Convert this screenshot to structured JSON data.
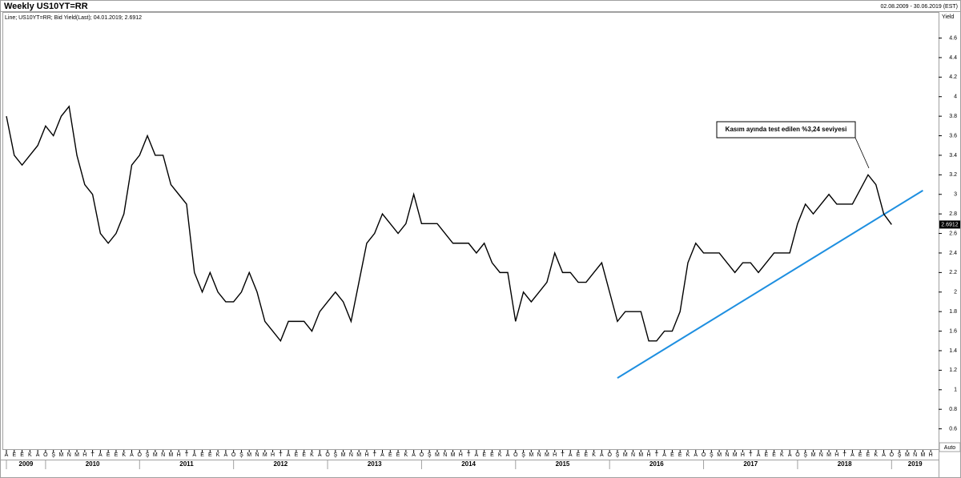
{
  "chart_data": {
    "type": "line",
    "title": "Weekly US10YT=RR",
    "date_range": "02.08.2009 - 30.06.2019 (EST)",
    "legend_text": "Line; US10YT=RR; Bid Yield(Last); 04.01.2019; 2.6912",
    "y_label": "Yield",
    "scale_mode": "Auto",
    "annotation": "Kasım ayında test edilen %3,24 seviyesi",
    "grid": false,
    "x": [
      "2009-08",
      "2009-09",
      "2009-10",
      "2009-11",
      "2009-12",
      "2010-01",
      "2010-02",
      "2010-03",
      "2010-04",
      "2010-05",
      "2010-06",
      "2010-07",
      "2010-08",
      "2010-09",
      "2010-10",
      "2010-11",
      "2010-12",
      "2011-01",
      "2011-02",
      "2011-03",
      "2011-04",
      "2011-05",
      "2011-06",
      "2011-07",
      "2011-08",
      "2011-09",
      "2011-10",
      "2011-11",
      "2011-12",
      "2012-01",
      "2012-02",
      "2012-03",
      "2012-04",
      "2012-05",
      "2012-06",
      "2012-07",
      "2012-08",
      "2012-09",
      "2012-10",
      "2012-11",
      "2012-12",
      "2013-01",
      "2013-02",
      "2013-03",
      "2013-04",
      "2013-05",
      "2013-06",
      "2013-07",
      "2013-08",
      "2013-09",
      "2013-10",
      "2013-11",
      "2013-12",
      "2014-01",
      "2014-02",
      "2014-03",
      "2014-04",
      "2014-05",
      "2014-06",
      "2014-07",
      "2014-08",
      "2014-09",
      "2014-10",
      "2014-11",
      "2014-12",
      "2015-01",
      "2015-02",
      "2015-03",
      "2015-04",
      "2015-05",
      "2015-06",
      "2015-07",
      "2015-08",
      "2015-09",
      "2015-10",
      "2015-11",
      "2015-12",
      "2016-01",
      "2016-02",
      "2016-03",
      "2016-04",
      "2016-05",
      "2016-06",
      "2016-07",
      "2016-08",
      "2016-09",
      "2016-10",
      "2016-11",
      "2016-12",
      "2017-01",
      "2017-02",
      "2017-03",
      "2017-04",
      "2017-05",
      "2017-06",
      "2017-07",
      "2017-08",
      "2017-09",
      "2017-10",
      "2017-11",
      "2017-12",
      "2018-01",
      "2018-02",
      "2018-03",
      "2018-04",
      "2018-05",
      "2018-06",
      "2018-07",
      "2018-08",
      "2018-09",
      "2018-10",
      "2018-11",
      "2018-12",
      "2019-01"
    ],
    "series": [
      {
        "name": "US10YT=RR",
        "color": "#000000",
        "values": [
          3.8,
          3.4,
          3.3,
          3.4,
          3.5,
          3.7,
          3.6,
          3.8,
          3.9,
          3.4,
          3.1,
          3.0,
          2.6,
          2.5,
          2.6,
          2.8,
          3.3,
          3.4,
          3.6,
          3.4,
          3.4,
          3.1,
          3.0,
          2.9,
          2.2,
          2.0,
          2.2,
          2.0,
          1.9,
          1.9,
          2.0,
          2.2,
          2.0,
          1.7,
          1.6,
          1.5,
          1.7,
          1.7,
          1.7,
          1.6,
          1.8,
          1.9,
          2.0,
          1.9,
          1.7,
          2.1,
          2.5,
          2.6,
          2.8,
          2.7,
          2.6,
          2.7,
          3.0,
          2.7,
          2.7,
          2.7,
          2.6,
          2.5,
          2.5,
          2.5,
          2.4,
          2.5,
          2.3,
          2.2,
          2.2,
          1.7,
          2.0,
          1.9,
          2.0,
          2.1,
          2.4,
          2.2,
          2.2,
          2.1,
          2.1,
          2.2,
          2.3,
          2.0,
          1.7,
          1.8,
          1.8,
          1.8,
          1.5,
          1.5,
          1.6,
          1.6,
          1.8,
          2.3,
          2.5,
          2.4,
          2.4,
          2.4,
          2.3,
          2.2,
          2.3,
          2.3,
          2.2,
          2.3,
          2.4,
          2.4,
          2.4,
          2.7,
          2.9,
          2.8,
          2.9,
          3.0,
          2.9,
          2.9,
          2.9,
          3.05,
          3.2,
          3.1,
          2.8,
          2.6912
        ]
      }
    ],
    "trendline": {
      "x": [
        "2016-02",
        "2019-05"
      ],
      "values": [
        1.12,
        3.04
      ],
      "color": "#1e8fe0"
    },
    "ylim": [
      0.4,
      4.76
    ],
    "yticks": [
      0.6,
      0.8,
      1,
      1.2,
      1.4,
      1.6,
      1.8,
      2,
      2.2,
      2.4,
      2.6,
      2.8,
      3,
      3.2,
      3.4,
      3.6,
      3.8,
      4,
      4.2,
      4.4,
      4.6
    ],
    "xlim": [
      "2009-08",
      "2019-07"
    ],
    "xticks": [
      {
        "value": "2009-08",
        "label": "A"
      },
      {
        "value": "2009-09",
        "label": "E"
      },
      {
        "value": "2009-10",
        "label": "E"
      },
      {
        "value": "2009-11",
        "label": "K"
      },
      {
        "value": "2009-12",
        "label": "A"
      },
      {
        "value": "2010-01",
        "label": "O"
      },
      {
        "value": "2010-02",
        "label": "Ş"
      },
      {
        "value": "2010-03",
        "label": "M"
      },
      {
        "value": "2010-04",
        "label": "N"
      },
      {
        "value": "2010-05",
        "label": "M"
      },
      {
        "value": "2010-06",
        "label": "H"
      },
      {
        "value": "2010-07",
        "label": "T"
      },
      {
        "value": "2010-08",
        "label": "A"
      },
      {
        "value": "2010-09",
        "label": "E"
      },
      {
        "value": "2010-10",
        "label": "E"
      },
      {
        "value": "2010-11",
        "label": "K"
      },
      {
        "value": "2010-12",
        "label": "A"
      },
      {
        "value": "2011-01",
        "label": "O"
      },
      {
        "value": "2011-02",
        "label": "Ş"
      },
      {
        "value": "2011-03",
        "label": "M"
      },
      {
        "value": "2011-04",
        "label": "N"
      },
      {
        "value": "2011-05",
        "label": "M"
      },
      {
        "value": "2011-06",
        "label": "H"
      },
      {
        "value": "2011-07",
        "label": "T"
      },
      {
        "value": "2011-08",
        "label": "A"
      },
      {
        "value": "2011-09",
        "label": "E"
      },
      {
        "value": "2011-10",
        "label": "E"
      },
      {
        "value": "2011-11",
        "label": "K"
      },
      {
        "value": "2011-12",
        "label": "A"
      },
      {
        "value": "2012-01",
        "label": "O"
      },
      {
        "value": "2012-02",
        "label": "Ş"
      },
      {
        "value": "2012-03",
        "label": "M"
      },
      {
        "value": "2012-04",
        "label": "N"
      },
      {
        "value": "2012-05",
        "label": "M"
      },
      {
        "value": "2012-06",
        "label": "H"
      },
      {
        "value": "2012-07",
        "label": "T"
      },
      {
        "value": "2012-08",
        "label": "A"
      },
      {
        "value": "2012-09",
        "label": "E"
      },
      {
        "value": "2012-10",
        "label": "E"
      },
      {
        "value": "2012-11",
        "label": "K"
      },
      {
        "value": "2012-12",
        "label": "A"
      },
      {
        "value": "2013-01",
        "label": "O"
      },
      {
        "value": "2013-02",
        "label": "Ş"
      },
      {
        "value": "2013-03",
        "label": "M"
      },
      {
        "value": "2013-04",
        "label": "N"
      },
      {
        "value": "2013-05",
        "label": "M"
      },
      {
        "value": "2013-06",
        "label": "H"
      },
      {
        "value": "2013-07",
        "label": "T"
      },
      {
        "value": "2013-08",
        "label": "A"
      },
      {
        "value": "2013-09",
        "label": "E"
      },
      {
        "value": "2013-10",
        "label": "E"
      },
      {
        "value": "2013-11",
        "label": "K"
      },
      {
        "value": "2013-12",
        "label": "A"
      },
      {
        "value": "2014-01",
        "label": "O"
      },
      {
        "value": "2014-02",
        "label": "Ş"
      },
      {
        "value": "2014-03",
        "label": "M"
      },
      {
        "value": "2014-04",
        "label": "N"
      },
      {
        "value": "2014-05",
        "label": "M"
      },
      {
        "value": "2014-06",
        "label": "H"
      },
      {
        "value": "2014-07",
        "label": "T"
      },
      {
        "value": "2014-08",
        "label": "A"
      },
      {
        "value": "2014-09",
        "label": "E"
      },
      {
        "value": "2014-10",
        "label": "E"
      },
      {
        "value": "2014-11",
        "label": "K"
      },
      {
        "value": "2014-12",
        "label": "A"
      },
      {
        "value": "2015-01",
        "label": "O"
      },
      {
        "value": "2015-02",
        "label": "Ş"
      },
      {
        "value": "2015-03",
        "label": "M"
      },
      {
        "value": "2015-04",
        "label": "N"
      },
      {
        "value": "2015-05",
        "label": "M"
      },
      {
        "value": "2015-06",
        "label": "H"
      },
      {
        "value": "2015-07",
        "label": "T"
      },
      {
        "value": "2015-08",
        "label": "A"
      },
      {
        "value": "2015-09",
        "label": "E"
      },
      {
        "value": "2015-10",
        "label": "E"
      },
      {
        "value": "2015-11",
        "label": "K"
      },
      {
        "value": "2015-12",
        "label": "A"
      },
      {
        "value": "2016-01",
        "label": "O"
      },
      {
        "value": "2016-02",
        "label": "Ş"
      },
      {
        "value": "2016-03",
        "label": "M"
      },
      {
        "value": "2016-04",
        "label": "N"
      },
      {
        "value": "2016-05",
        "label": "M"
      },
      {
        "value": "2016-06",
        "label": "H"
      },
      {
        "value": "2016-07",
        "label": "T"
      },
      {
        "value": "2016-08",
        "label": "A"
      },
      {
        "value": "2016-09",
        "label": "E"
      },
      {
        "value": "2016-10",
        "label": "E"
      },
      {
        "value": "2016-11",
        "label": "K"
      },
      {
        "value": "2016-12",
        "label": "A"
      },
      {
        "value": "2017-01",
        "label": "O"
      },
      {
        "value": "2017-02",
        "label": "Ş"
      },
      {
        "value": "2017-03",
        "label": "M"
      },
      {
        "value": "2017-04",
        "label": "N"
      },
      {
        "value": "2017-05",
        "label": "M"
      },
      {
        "value": "2017-06",
        "label": "H"
      },
      {
        "value": "2017-07",
        "label": "T"
      },
      {
        "value": "2017-08",
        "label": "A"
      },
      {
        "value": "2017-09",
        "label": "E"
      },
      {
        "value": "2017-10",
        "label": "E"
      },
      {
        "value": "2017-11",
        "label": "K"
      },
      {
        "value": "2017-12",
        "label": "A"
      },
      {
        "value": "2018-01",
        "label": "O"
      },
      {
        "value": "2018-02",
        "label": "Ş"
      },
      {
        "value": "2018-03",
        "label": "M"
      },
      {
        "value": "2018-04",
        "label": "N"
      },
      {
        "value": "2018-05",
        "label": "M"
      },
      {
        "value": "2018-06",
        "label": "H"
      },
      {
        "value": "2018-07",
        "label": "T"
      },
      {
        "value": "2018-08",
        "label": "A"
      },
      {
        "value": "2018-09",
        "label": "E"
      },
      {
        "value": "2018-10",
        "label": "E"
      },
      {
        "value": "2018-11",
        "label": "K"
      },
      {
        "value": "2018-12",
        "label": "A"
      },
      {
        "value": "2019-01",
        "label": "O"
      },
      {
        "value": "2019-02",
        "label": "Ş"
      },
      {
        "value": "2019-03",
        "label": "M"
      },
      {
        "value": "2019-04",
        "label": "N"
      },
      {
        "value": "2019-05",
        "label": "M"
      },
      {
        "value": "2019-06",
        "label": "H"
      }
    ],
    "x_years": [
      "2009",
      "2010",
      "2011",
      "2012",
      "2013",
      "2014",
      "2015",
      "2016",
      "2017",
      "2018",
      "2019"
    ]
  }
}
